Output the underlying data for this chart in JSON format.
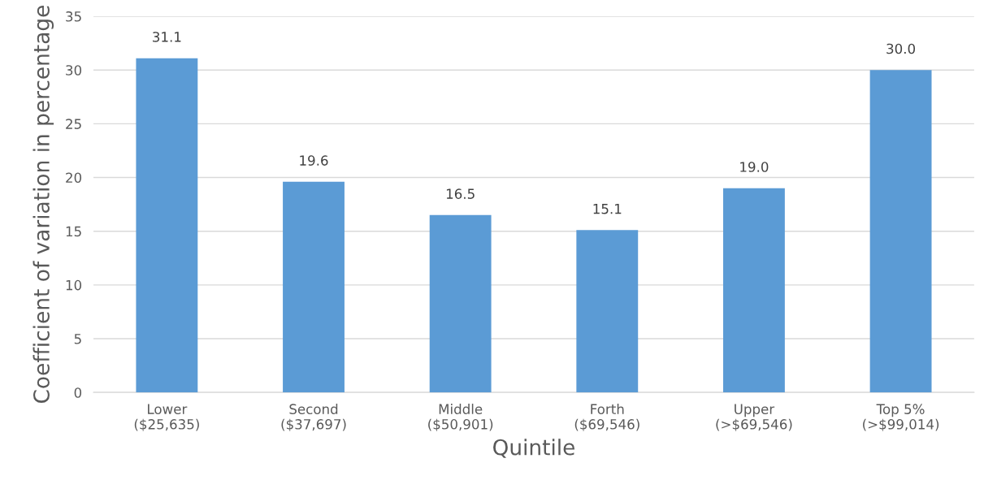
{
  "chart_data": {
    "type": "bar",
    "xlabel": "Quintile",
    "ylabel": "Coefficient of variation in percentage",
    "categories": [
      "Lower\n($25,635)",
      "Second\n($37,697)",
      "Middle\n($50,901)",
      "Forth\n($69,546)",
      "Upper\n(>$69,546)",
      "Top 5%\n(>$99,014)"
    ],
    "values": [
      31.1,
      19.6,
      16.5,
      15.1,
      19.0,
      30.0
    ],
    "value_labels": [
      "31.1",
      "19.6",
      "16.5",
      "15.1",
      "19.0",
      "30.0"
    ],
    "color": "#5b9bd5",
    "ylim": [
      0,
      35
    ],
    "yticks": [
      0,
      5,
      10,
      15,
      20,
      25,
      30,
      35
    ],
    "grid": "y"
  }
}
